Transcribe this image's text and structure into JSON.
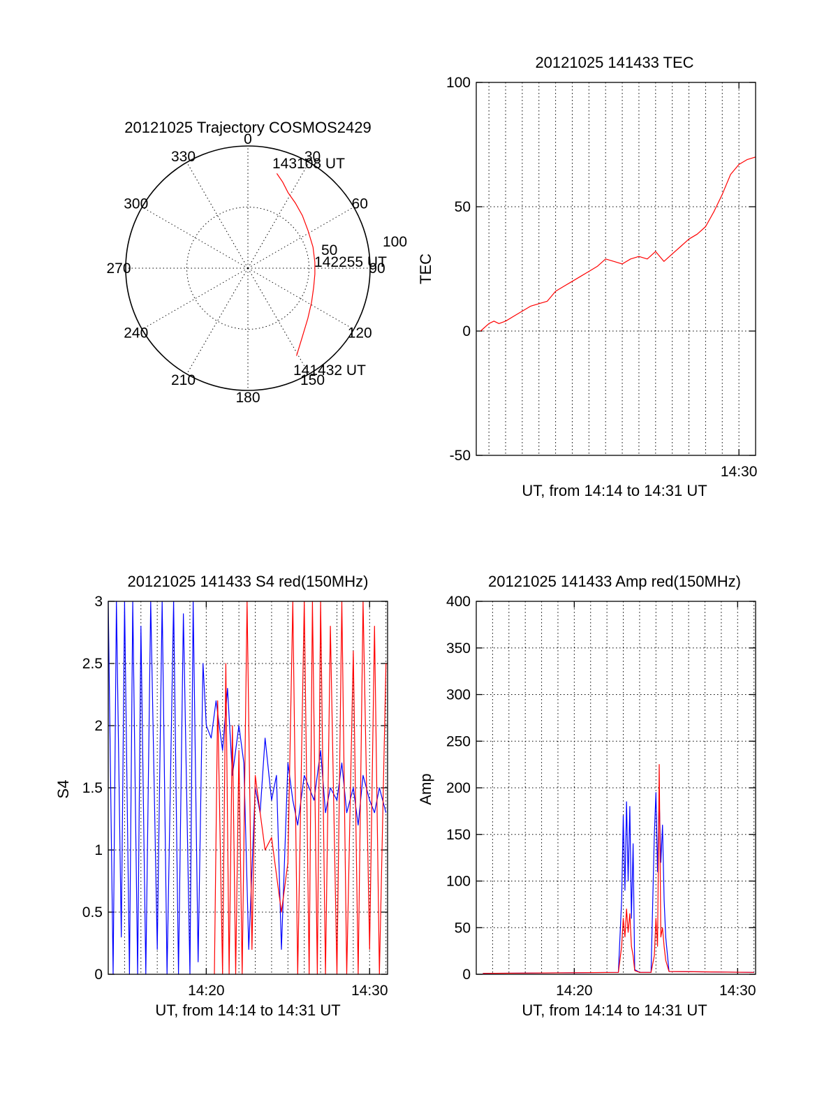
{
  "chart_data": [
    {
      "type": "polar",
      "title": "20121025 Trajectory COSMOS2429",
      "angle_labels": [
        "0",
        "30",
        "60",
        "90",
        "120",
        "150",
        "180",
        "210",
        "240",
        "270",
        "300",
        "330"
      ],
      "radius_labels": [
        "50",
        "100"
      ],
      "radius_range": [
        0,
        100
      ],
      "grid": true,
      "trajectory_color": "#ff0000",
      "trajectory": {
        "azimuth": [
          17,
          22,
          28,
          36,
          46,
          58,
          72,
          85,
          95,
          106,
          118,
          130,
          142,
          151
        ],
        "radius": [
          81,
          76,
          70,
          66,
          62,
          58,
          56,
          55,
          55,
          56,
          59,
          64,
          72,
          82
        ]
      },
      "annotations": [
        "143108 UT",
        "142255 UT",
        "141432 UT"
      ]
    },
    {
      "type": "line",
      "title": "20121025 141433 TEC",
      "xlabel": "UT, from 14:14 to 14:31 UT",
      "ylabel": "TEC",
      "xlim": [
        14.24,
        31.0
      ],
      "ylim": [
        -50,
        100
      ],
      "yticks": [
        "-50",
        "0",
        "50",
        "100"
      ],
      "xticks": [
        "14:30"
      ],
      "grid": true,
      "series": [
        {
          "color": "#ff0000",
          "x": [
            14.5,
            15.0,
            15.3,
            15.6,
            16.0,
            16.5,
            17.0,
            17.5,
            18.0,
            18.5,
            19.0,
            19.5,
            20.0,
            20.5,
            21.0,
            21.5,
            22.0,
            22.5,
            23.0,
            23.5,
            24.0,
            24.5,
            25.0,
            25.5,
            26.0,
            26.5,
            27.0,
            27.5,
            28.0,
            28.5,
            29.0,
            29.5,
            30.0,
            30.5,
            31.0
          ],
          "y": [
            0,
            3,
            4,
            3,
            4,
            6,
            8,
            10,
            11,
            12,
            16,
            18,
            20,
            22,
            24,
            26,
            29,
            28,
            27,
            29,
            30,
            29,
            32,
            28,
            31,
            34,
            37,
            39,
            42,
            48,
            55,
            63,
            67,
            69,
            70
          ]
        }
      ]
    },
    {
      "type": "line",
      "title": "20121025 141433 S4 red(150MHz)",
      "xlabel": "UT, from 14:14 to 14:31 UT",
      "ylabel": "S4",
      "xlim": [
        14.0,
        31.1
      ],
      "ylim": [
        0,
        3
      ],
      "yticks": [
        "0",
        "0.5",
        "1",
        "1.5",
        "2",
        "2.5",
        "3"
      ],
      "xticks": [
        "14:20",
        "14:30"
      ],
      "grid": true,
      "series": [
        {
          "color": "#0000ff",
          "x": [
            14.0,
            14.3,
            14.5,
            14.8,
            15.0,
            15.3,
            15.5,
            15.8,
            16.0,
            16.3,
            16.6,
            17.0,
            17.3,
            17.6,
            18.0,
            18.3,
            18.6,
            19.0,
            19.2,
            19.5,
            19.8,
            20.0,
            20.3,
            20.6,
            21.0,
            21.3,
            21.6,
            22.0,
            22.3,
            22.6,
            23.0,
            23.3,
            23.6,
            24.0,
            24.3,
            24.6,
            25.0,
            25.3,
            25.6,
            26.0,
            26.3,
            26.6,
            27.0,
            27.3,
            27.6,
            28.0,
            28.3,
            28.6,
            29.0,
            29.3,
            29.6,
            30.0,
            30.3,
            30.6,
            31.0
          ],
          "y": [
            3,
            0,
            3,
            0.3,
            3,
            0,
            3,
            0,
            2.8,
            0,
            3,
            0.2,
            3,
            0,
            3,
            0,
            2.9,
            0,
            3,
            0.1,
            2.5,
            2.0,
            1.9,
            2.2,
            1.8,
            2.3,
            1.6,
            2.0,
            1.7,
            0.2,
            1.5,
            1.3,
            1.9,
            1.4,
            1.6,
            0.2,
            1.7,
            1.4,
            1.2,
            1.6,
            1.5,
            1.4,
            1.8,
            1.3,
            1.5,
            1.4,
            1.7,
            1.3,
            1.5,
            1.2,
            1.6,
            1.4,
            1.3,
            1.5,
            1.3
          ]
        },
        {
          "color": "#ff0000",
          "x": [
            20.5,
            20.7,
            21.0,
            21.2,
            21.4,
            21.6,
            21.8,
            22.0,
            22.2,
            22.5,
            22.8,
            23.0,
            23.3,
            23.6,
            24.0,
            24.3,
            24.6,
            25.0,
            25.3,
            25.6,
            26.0,
            26.3,
            26.5,
            26.8,
            27.0,
            27.3,
            27.6,
            28.0,
            28.3,
            28.6,
            29.0,
            29.3,
            29.6,
            30.0,
            30.3,
            30.6,
            31.0
          ],
          "y": [
            0,
            2.2,
            0,
            2.5,
            0,
            2.0,
            0,
            1.8,
            0,
            3.0,
            0.2,
            1.6,
            1.3,
            1.0,
            1.1,
            0.8,
            0.5,
            0.9,
            3.0,
            0,
            3.0,
            0,
            3.0,
            0,
            3.0,
            0,
            2.8,
            0,
            3.0,
            0,
            2.6,
            0,
            3.0,
            0.2,
            2.8,
            0,
            2.5
          ]
        }
      ]
    },
    {
      "type": "line",
      "title": "20121025 141433 Amp red(150MHz)",
      "xlabel": "UT, from 14:14 to 14:31 UT",
      "ylabel": "Amp",
      "xlim": [
        14.0,
        31.1
      ],
      "ylim": [
        0,
        400
      ],
      "yticks": [
        "0",
        "50",
        "100",
        "150",
        "200",
        "250",
        "300",
        "350",
        "400"
      ],
      "xticks": [
        "14:20",
        "14:30"
      ],
      "grid": true,
      "series": [
        {
          "color": "#0000ff",
          "x": [
            14.4,
            22.7,
            22.9,
            23.0,
            23.1,
            23.2,
            23.3,
            23.4,
            23.5,
            23.6,
            23.7,
            24.0,
            24.7,
            24.9,
            25.0,
            25.1,
            25.2,
            25.3,
            25.4,
            25.5,
            25.6,
            25.8,
            31.0
          ],
          "y": [
            1,
            2,
            80,
            170,
            90,
            185,
            100,
            180,
            60,
            140,
            5,
            2,
            2,
            150,
            195,
            110,
            190,
            120,
            160,
            80,
            40,
            3,
            2
          ]
        },
        {
          "color": "#ff0000",
          "x": [
            14.4,
            22.7,
            22.9,
            23.0,
            23.1,
            23.2,
            23.3,
            23.4,
            23.5,
            23.6,
            23.7,
            24.0,
            24.7,
            24.9,
            25.0,
            25.1,
            25.2,
            25.3,
            25.4,
            25.5,
            25.6,
            25.8,
            31.0
          ],
          "y": [
            1,
            2,
            30,
            60,
            40,
            70,
            45,
            65,
            30,
            20,
            4,
            2,
            2,
            20,
            60,
            30,
            225,
            40,
            50,
            30,
            15,
            3,
            2
          ]
        }
      ]
    }
  ]
}
